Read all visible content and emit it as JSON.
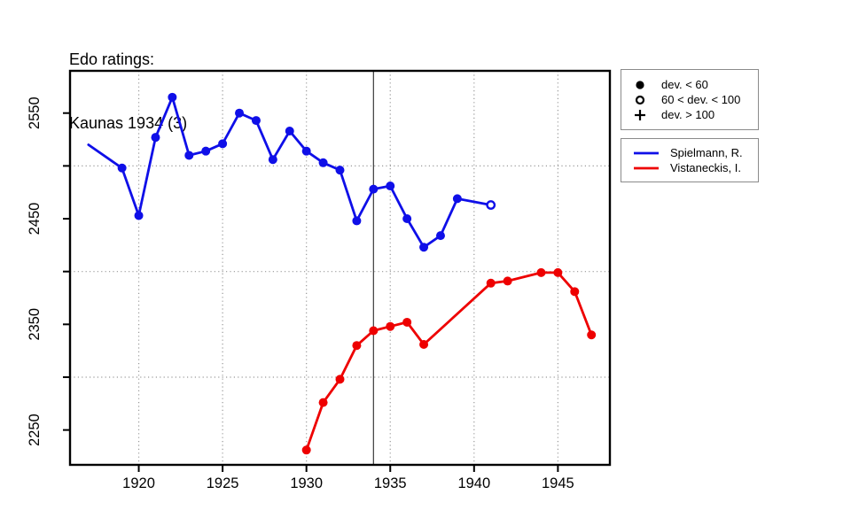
{
  "title": {
    "line1": "Edo ratings:",
    "line2": "Kaunas 1934 (3)"
  },
  "colors": {
    "spielmann": "#0f0fe8",
    "vistaneckis": "#ee0000",
    "grid": "#999999",
    "event_line": "#3a3a3a",
    "axis": "#000000",
    "legend_border": "#8a8a8a",
    "legend_symbol": "#000000"
  },
  "marker_legend": {
    "items": [
      {
        "symbol": "filled-circle",
        "label": "dev. < 60"
      },
      {
        "symbol": "open-circle",
        "label": "60 < dev. < 100"
      },
      {
        "symbol": "plus",
        "label": "dev. > 100"
      }
    ]
  },
  "series_legend": {
    "items": [
      {
        "color": "#0f0fe8",
        "label": "Spielmann, R."
      },
      {
        "color": "#ee0000",
        "label": "Vistaneckis, I."
      }
    ]
  },
  "chart_data": {
    "type": "line",
    "title": "Edo ratings: Kaunas 1934 (3)",
    "xlabel": "",
    "ylabel": "",
    "xlim": [
      1915.9,
      1948.1
    ],
    "ylim": [
      2217,
      2590
    ],
    "x_ticks": [
      1920,
      1925,
      1930,
      1935,
      1940,
      1945
    ],
    "y_ticks_minor": [
      2250,
      2300,
      2350,
      2400,
      2450,
      2500,
      2550
    ],
    "y_ticks_labeled": [
      2250,
      2350,
      2450,
      2550
    ],
    "grid_vertical_years": [
      1920,
      1925,
      1930,
      1935,
      1940,
      1945
    ],
    "grid_horizontal_ratings": [
      2300,
      2400,
      2500
    ],
    "event_marker_year": 1934,
    "grid": true,
    "legend_position": "right-outside",
    "marker_meaning": {
      "filled": "dev. < 60",
      "open": "60 < dev. < 100",
      "plus": "dev. > 100"
    },
    "series": [
      {
        "name": "Spielmann, R.",
        "color": "#0f0fe8",
        "points": [
          {
            "year": 1917,
            "rating": 2520,
            "marker": "none"
          },
          {
            "year": 1919,
            "rating": 2498,
            "marker": "filled"
          },
          {
            "year": 1920,
            "rating": 2453,
            "marker": "filled"
          },
          {
            "year": 1921,
            "rating": 2527,
            "marker": "filled"
          },
          {
            "year": 1922,
            "rating": 2565,
            "marker": "filled"
          },
          {
            "year": 1923,
            "rating": 2510,
            "marker": "filled"
          },
          {
            "year": 1924,
            "rating": 2514,
            "marker": "filled"
          },
          {
            "year": 1925,
            "rating": 2521,
            "marker": "filled"
          },
          {
            "year": 1926,
            "rating": 2550,
            "marker": "filled"
          },
          {
            "year": 1927,
            "rating": 2543,
            "marker": "filled"
          },
          {
            "year": 1928,
            "rating": 2506,
            "marker": "filled"
          },
          {
            "year": 1929,
            "rating": 2533,
            "marker": "filled"
          },
          {
            "year": 1930,
            "rating": 2514,
            "marker": "filled"
          },
          {
            "year": 1931,
            "rating": 2503,
            "marker": "filled"
          },
          {
            "year": 1932,
            "rating": 2496,
            "marker": "filled"
          },
          {
            "year": 1933,
            "rating": 2448,
            "marker": "filled"
          },
          {
            "year": 1934,
            "rating": 2478,
            "marker": "filled"
          },
          {
            "year": 1935,
            "rating": 2481,
            "marker": "filled"
          },
          {
            "year": 1936,
            "rating": 2450,
            "marker": "filled"
          },
          {
            "year": 1937,
            "rating": 2423,
            "marker": "filled"
          },
          {
            "year": 1938,
            "rating": 2434,
            "marker": "filled"
          },
          {
            "year": 1939,
            "rating": 2469,
            "marker": "filled"
          },
          {
            "year": 1941,
            "rating": 2463,
            "marker": "open"
          }
        ]
      },
      {
        "name": "Vistaneckis, I.",
        "color": "#ee0000",
        "points": [
          {
            "year": 1930,
            "rating": 2231,
            "marker": "filled"
          },
          {
            "year": 1931,
            "rating": 2276,
            "marker": "filled"
          },
          {
            "year": 1932,
            "rating": 2298,
            "marker": "filled"
          },
          {
            "year": 1933,
            "rating": 2330,
            "marker": "filled"
          },
          {
            "year": 1934,
            "rating": 2344,
            "marker": "filled"
          },
          {
            "year": 1935,
            "rating": 2348,
            "marker": "filled"
          },
          {
            "year": 1936,
            "rating": 2352,
            "marker": "filled"
          },
          {
            "year": 1937,
            "rating": 2331,
            "marker": "filled"
          },
          {
            "year": 1941,
            "rating": 2389,
            "marker": "filled"
          },
          {
            "year": 1942,
            "rating": 2391,
            "marker": "filled"
          },
          {
            "year": 1944,
            "rating": 2399,
            "marker": "filled"
          },
          {
            "year": 1945,
            "rating": 2399,
            "marker": "filled"
          },
          {
            "year": 1946,
            "rating": 2381,
            "marker": "filled"
          },
          {
            "year": 1947,
            "rating": 2340,
            "marker": "filled"
          }
        ]
      }
    ]
  }
}
